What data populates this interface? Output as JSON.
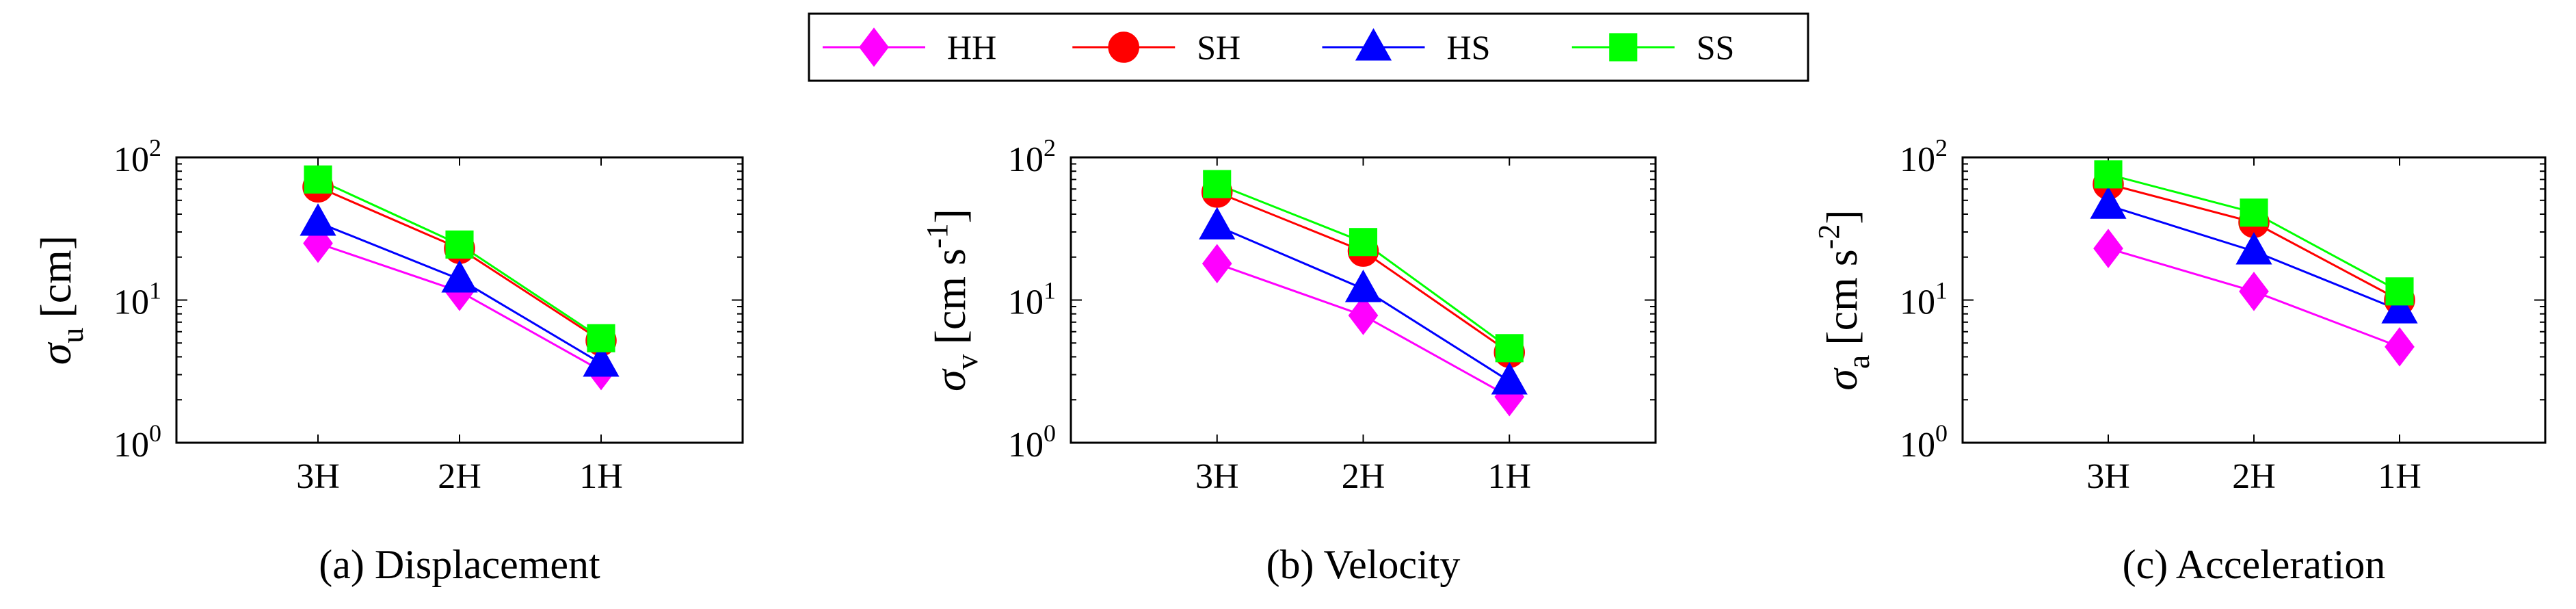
{
  "legend": {
    "placement": "top-center",
    "entries": [
      {
        "label": "HH",
        "color": "#ff00ff",
        "marker": "diamond"
      },
      {
        "label": "SH",
        "color": "#ff0000",
        "marker": "circle"
      },
      {
        "label": "HS",
        "color": "#0000ff",
        "marker": "triangle"
      },
      {
        "label": "SS",
        "color": "#00ff00",
        "marker": "square"
      }
    ]
  },
  "chart_data": [
    {
      "type": "line",
      "title": "(a) Displacement",
      "ylabel": {
        "symbol": "σ",
        "sub": "u",
        "unit_before": "[cm]",
        "sup": "",
        "unit_after": ""
      },
      "yscale": "log",
      "ylim": [
        1,
        100
      ],
      "yticks": [
        {
          "base": "10",
          "exp": "0"
        },
        {
          "base": "10",
          "exp": "1"
        },
        {
          "base": "10",
          "exp": "2"
        }
      ],
      "xlim": [
        0,
        4
      ],
      "x": [
        1,
        2,
        3
      ],
      "categories": [
        "3H",
        "2H",
        "1H"
      ],
      "grid": false,
      "series": [
        {
          "name": "HH",
          "values": [
            25,
            11.5,
            3.2
          ]
        },
        {
          "name": "SH",
          "values": [
            62,
            23,
            5.2
          ]
        },
        {
          "name": "HS",
          "values": [
            35,
            14,
            3.6
          ]
        },
        {
          "name": "SS",
          "values": [
            70,
            24.5,
            5.4
          ]
        }
      ]
    },
    {
      "type": "line",
      "title": "(b) Velocity",
      "ylabel": {
        "symbol": "σ",
        "sub": "v",
        "unit_before": "[cm s",
        "sup": "-1",
        "unit_after": "]"
      },
      "yscale": "log",
      "ylim": [
        1,
        100
      ],
      "yticks": [
        {
          "base": "10",
          "exp": "0"
        },
        {
          "base": "10",
          "exp": "1"
        },
        {
          "base": "10",
          "exp": "2"
        }
      ],
      "xlim": [
        0,
        4
      ],
      "x": [
        1,
        2,
        3
      ],
      "categories": [
        "3H",
        "2H",
        "1H"
      ],
      "grid": false,
      "series": [
        {
          "name": "HH",
          "values": [
            18,
            7.8,
            2.1
          ]
        },
        {
          "name": "SH",
          "values": [
            57,
            22,
            4.3
          ]
        },
        {
          "name": "HS",
          "values": [
            33,
            12,
            2.7
          ]
        },
        {
          "name": "SS",
          "values": [
            65,
            25.5,
            4.6
          ]
        }
      ]
    },
    {
      "type": "line",
      "title": "(c) Acceleration",
      "ylabel": {
        "symbol": "σ",
        "sub": "a",
        "unit_before": "[cm s",
        "sup": "-2",
        "unit_after": "]"
      },
      "yscale": "log",
      "ylim": [
        1,
        100
      ],
      "yticks": [
        {
          "base": "10",
          "exp": "0"
        },
        {
          "base": "10",
          "exp": "1"
        },
        {
          "base": "10",
          "exp": "2"
        }
      ],
      "xlim": [
        0,
        4
      ],
      "x": [
        1,
        2,
        3
      ],
      "categories": [
        "3H",
        "2H",
        "1H"
      ],
      "grid": false,
      "series": [
        {
          "name": "HH",
          "values": [
            23,
            11.5,
            4.7
          ]
        },
        {
          "name": "SH",
          "values": [
            65,
            35,
            10
          ]
        },
        {
          "name": "HS",
          "values": [
            46,
            22,
            8.5
          ]
        },
        {
          "name": "SS",
          "values": [
            76,
            41,
            11.5
          ]
        }
      ]
    }
  ]
}
